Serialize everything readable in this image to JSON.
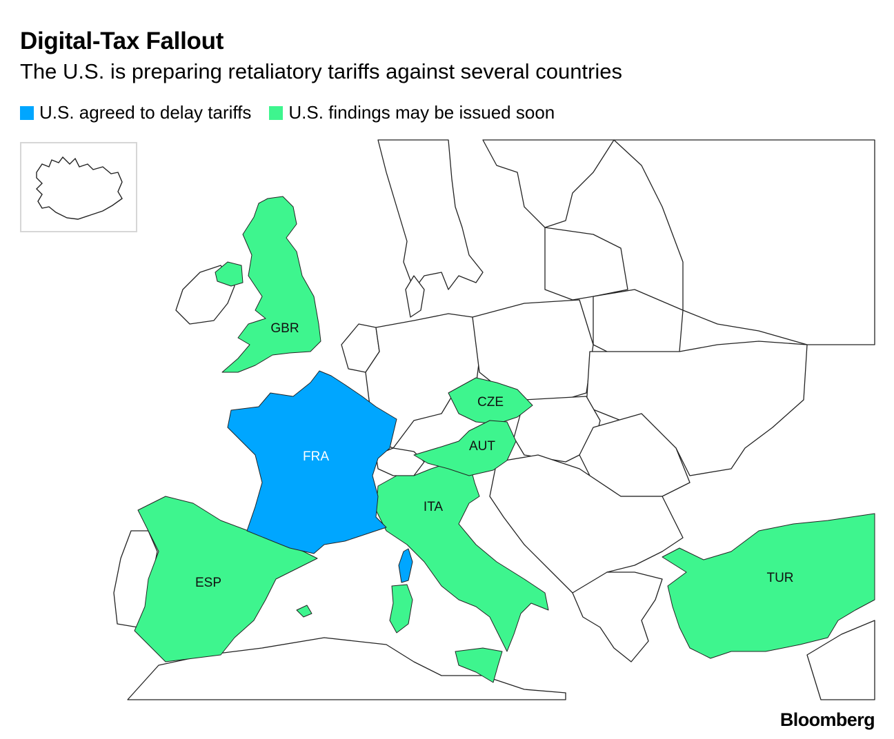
{
  "header": {
    "title": "Digital-Tax Fallout",
    "subtitle": "The U.S. is preparing retaliatory tariffs against several countries"
  },
  "legend": [
    {
      "label": "U.S. agreed to delay tariffs",
      "color": "#00a6ff"
    },
    {
      "label": "U.S. findings may be issued soon",
      "color": "#3ef58e"
    }
  ],
  "countries": {
    "gbr": {
      "code": "GBR",
      "status": "findings"
    },
    "fra": {
      "code": "FRA",
      "status": "delay"
    },
    "esp": {
      "code": "ESP",
      "status": "findings"
    },
    "ita": {
      "code": "ITA",
      "status": "findings"
    },
    "cze": {
      "code": "CZE",
      "status": "findings"
    },
    "aut": {
      "code": "AUT",
      "status": "findings"
    },
    "tur": {
      "code": "TUR",
      "status": "findings"
    }
  },
  "colors": {
    "delay": "#00a6ff",
    "findings": "#3ef58e",
    "other": "#ffffff",
    "border": "#222222"
  },
  "footer": {
    "brand": "Bloomberg"
  }
}
